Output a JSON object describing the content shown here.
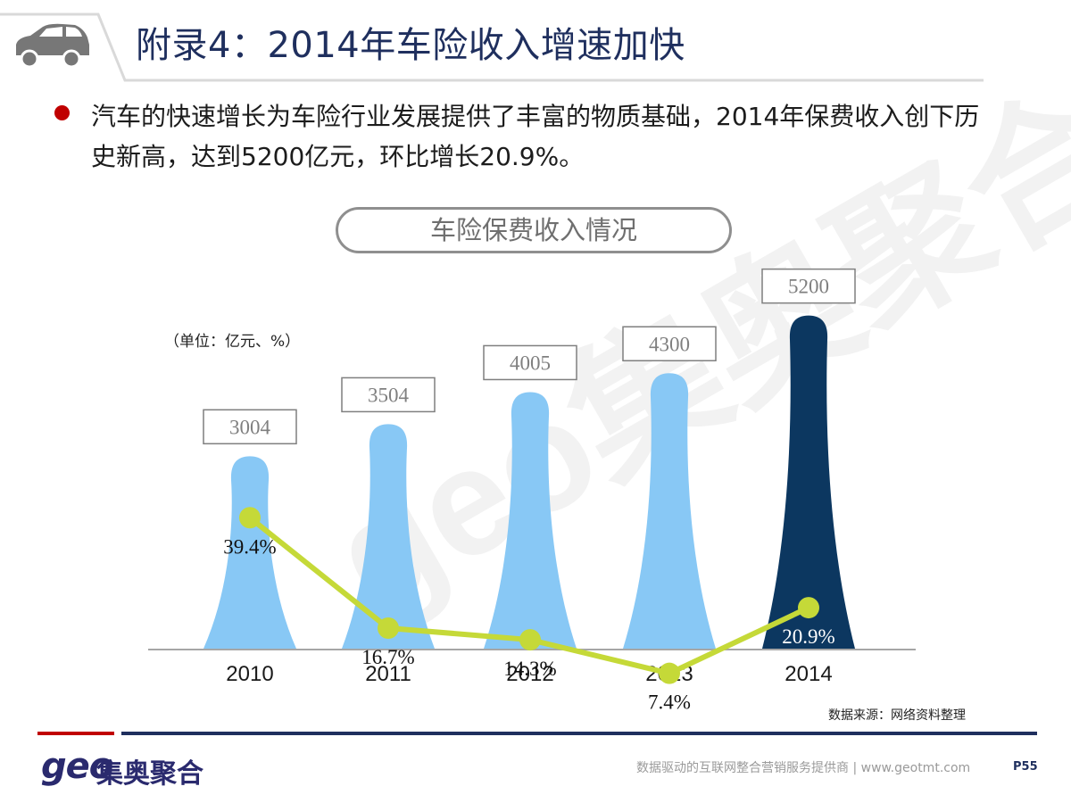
{
  "header": {
    "title": "附录4：2014年车险收入增速加快"
  },
  "body": {
    "bullet": "汽车的快速增长为车险行业发展提供了丰富的物质基础，2014年保费收入创下历史新高，达到5200亿元，环比增长20.9%。"
  },
  "chart_data": {
    "type": "bar",
    "title": "车险保费收入情况",
    "unit_note": "（单位：亿元、%）",
    "categories": [
      "2010",
      "2011",
      "2012",
      "2013",
      "2014"
    ],
    "series": [
      {
        "values": [
          3004,
          3504,
          4005,
          4300,
          5200
        ]
      },
      {
        "type": "line",
        "values": [
          39.4,
          16.7,
          14.3,
          7.4,
          20.9
        ]
      }
    ],
    "value_labels": [
      "3004",
      "3504",
      "4005",
      "4300",
      "5200"
    ],
    "rate_labels": [
      "39.4%",
      "16.7%",
      "14.3%",
      "7.4%",
      "20.9%"
    ],
    "highlight_index": 4,
    "colors": {
      "bar": "#88c8f5",
      "highlight_bar": "#0c3760",
      "line": "#c5d938",
      "label_box": "#7f7f7f"
    },
    "source": "数据来源：网络资料整理"
  },
  "watermark": "geo集奥聚合",
  "footer": {
    "logo_latin": "geo",
    "logo_cn": "集奥聚合",
    "tagline": "数据驱动的互联网整合营销服务提供商 | www.geotmt.com",
    "page": "P55"
  },
  "icons": {
    "header": "car-icon",
    "bullet": "bullet-dot"
  }
}
